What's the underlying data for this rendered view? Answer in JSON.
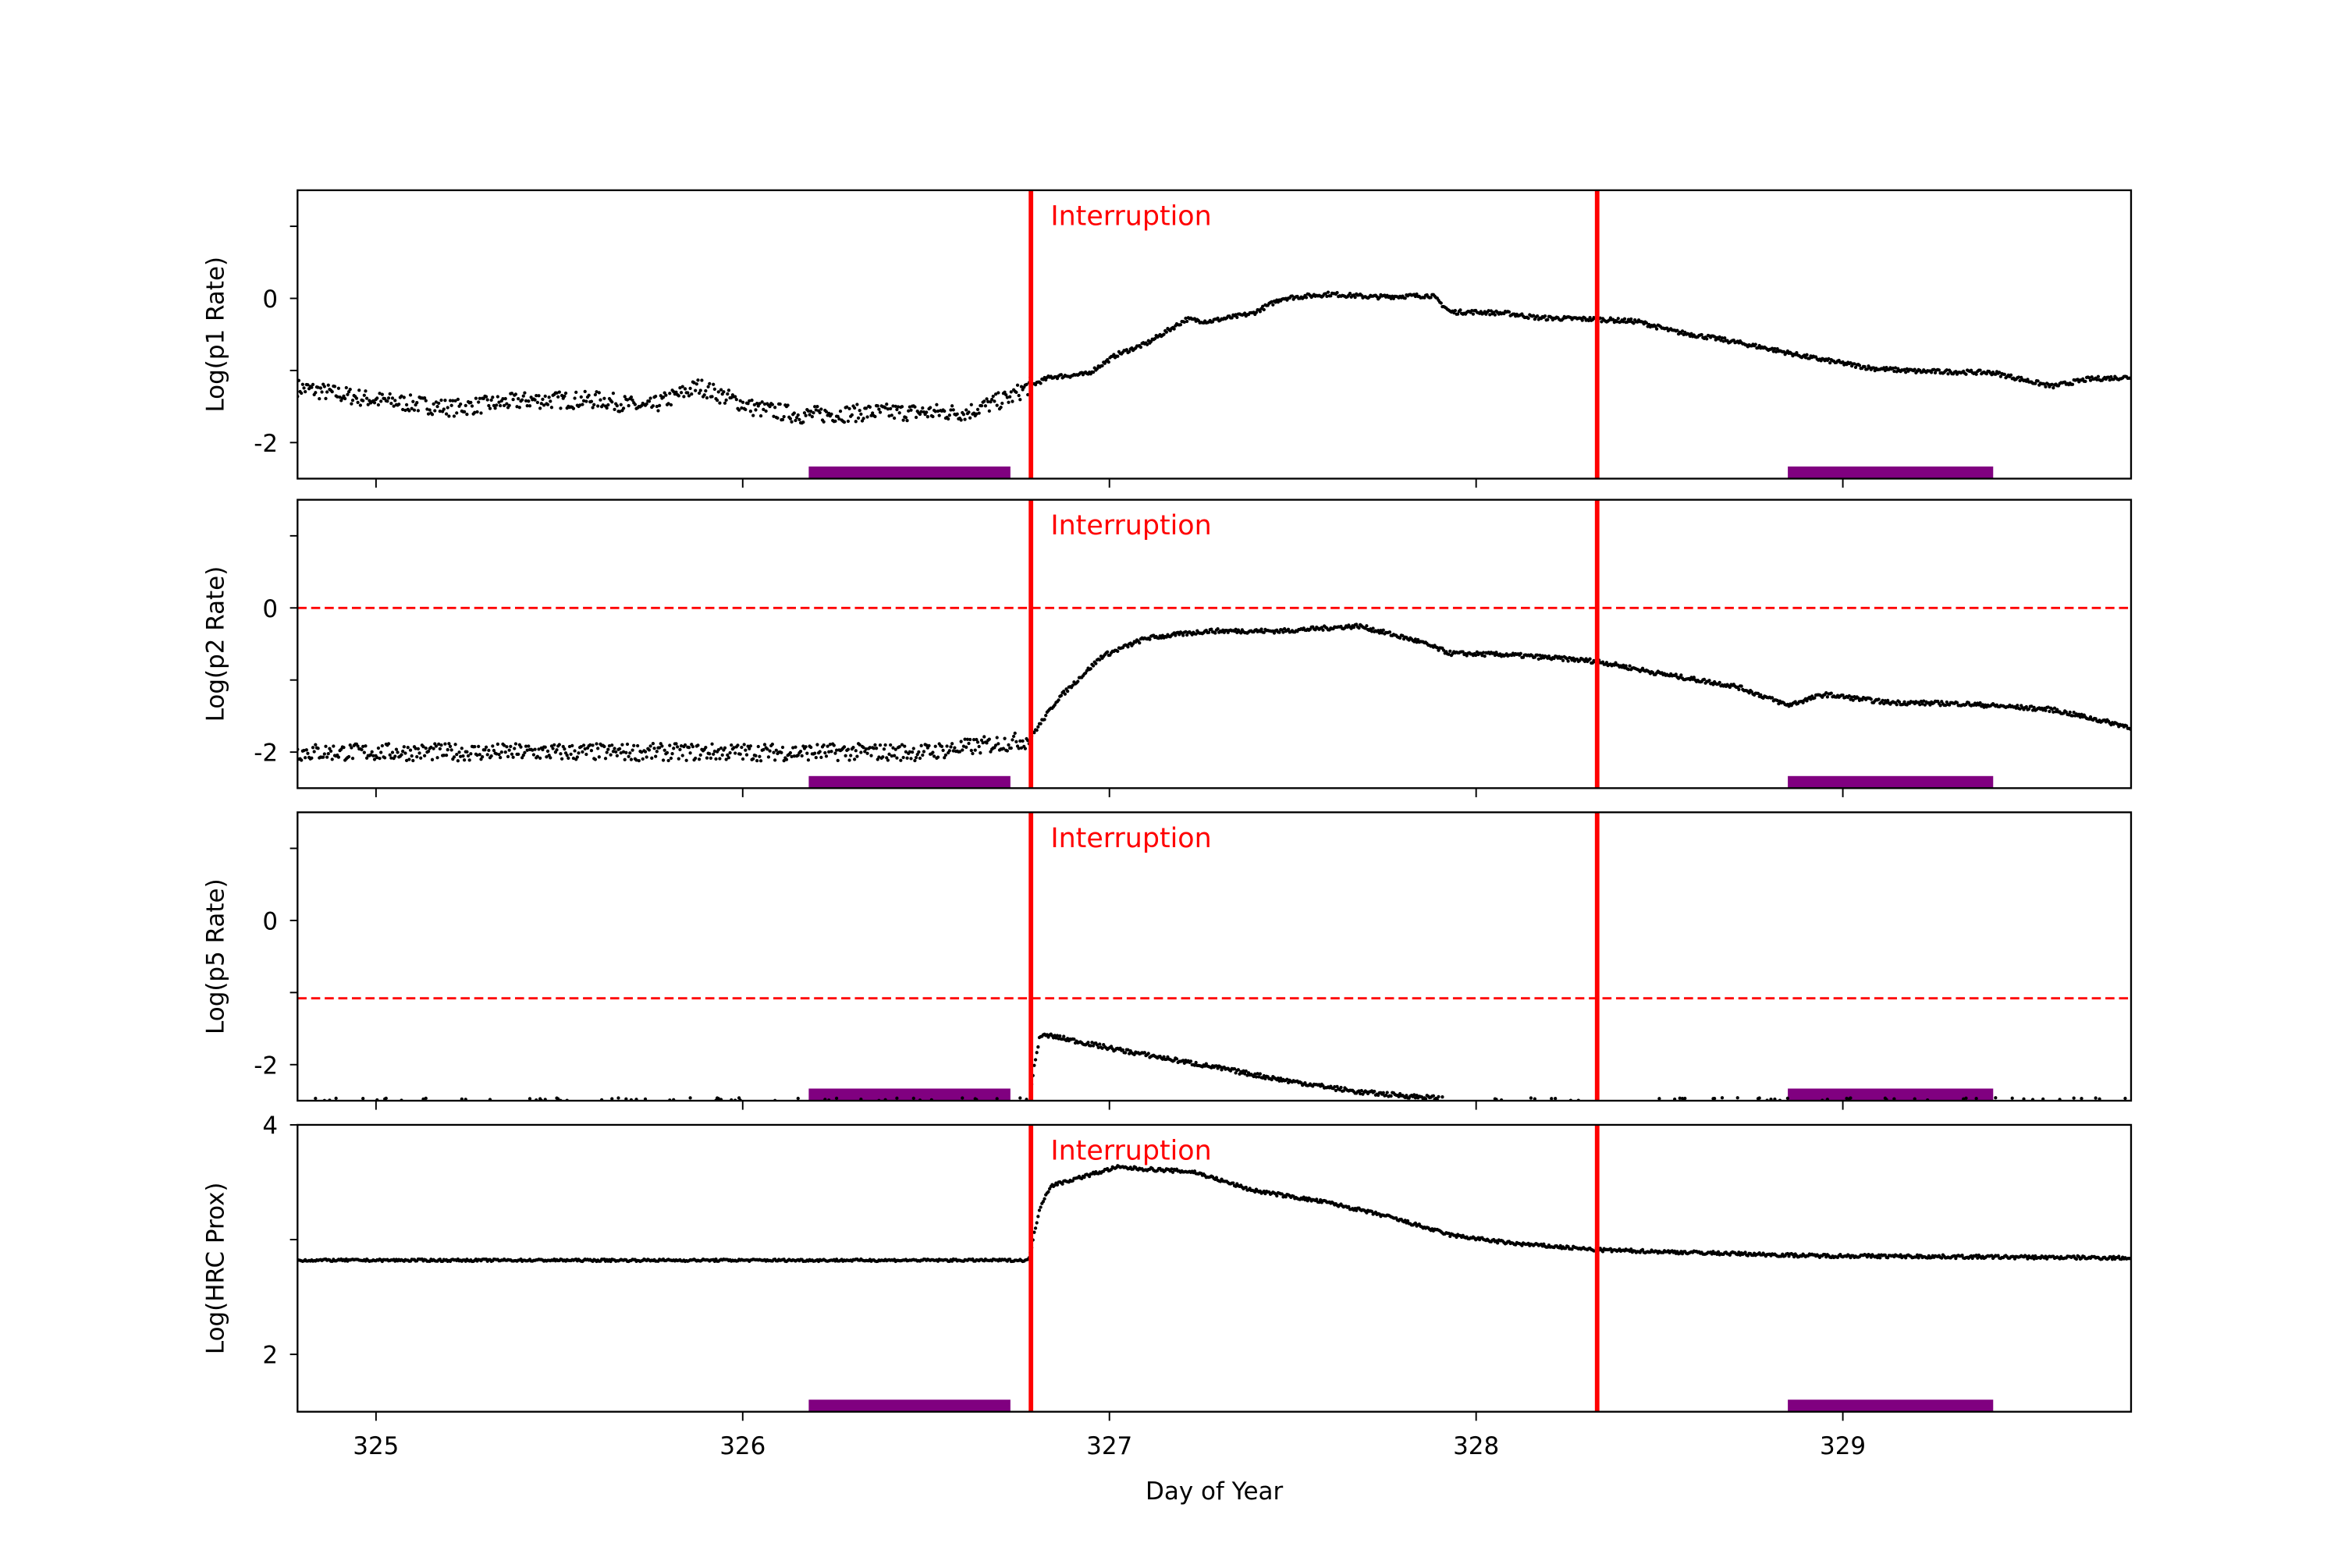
{
  "chart_data": [
    {
      "type": "scatter",
      "ylabel": "Log(p1 Rate)",
      "xlim": [
        324.786,
        329.786
      ],
      "ylim": [
        -2.5,
        1.5
      ],
      "yticks": [
        1,
        0,
        -1,
        -2
      ],
      "ytick_labels": [
        "",
        "0",
        "",
        "-2"
      ],
      "xtick_labels_shown": false,
      "threshold": null,
      "annotation": "Interruption",
      "series": [
        {
          "x": [
            324.79,
            325.0,
            325.21,
            325.42,
            325.62,
            325.74,
            325.88,
            326.03,
            326.16,
            326.36,
            326.61,
            326.73,
            326.78,
            326.84,
            326.94,
            327.02,
            327.1,
            327.21,
            327.27,
            327.39,
            327.47,
            327.6,
            327.72,
            327.88,
            327.93,
            328.01,
            328.09,
            328.17,
            328.33,
            328.44,
            328.54,
            328.67,
            328.79,
            328.91,
            329.08,
            329.2,
            329.41,
            329.57,
            329.67,
            329.79
          ],
          "y": [
            -1.24,
            -1.41,
            -1.52,
            -1.41,
            -1.41,
            -1.52,
            -1.22,
            -1.52,
            -1.62,
            -1.58,
            -1.58,
            -1.37,
            -1.22,
            -1.09,
            -1.05,
            -0.78,
            -0.63,
            -0.29,
            -0.32,
            -0.21,
            0.0,
            0.06,
            0.02,
            0.04,
            -0.19,
            -0.19,
            -0.21,
            -0.27,
            -0.29,
            -0.32,
            -0.46,
            -0.57,
            -0.69,
            -0.82,
            -0.97,
            -1.01,
            -1.03,
            -1.22,
            -1.12,
            -1.09
          ]
        }
      ]
    },
    {
      "type": "scatter",
      "ylabel": "Log(p2 Rate)",
      "xlim": [
        324.786,
        329.786
      ],
      "ylim": [
        -2.5,
        1.5
      ],
      "yticks": [
        1,
        0,
        -1,
        -2
      ],
      "ytick_labels": [
        "",
        "0",
        "",
        "-2"
      ],
      "xtick_labels_shown": false,
      "threshold": 0,
      "annotation": "Interruption",
      "series": [
        {
          "x": [
            324.79,
            325.5,
            326.0,
            326.5,
            326.78,
            326.86,
            326.98,
            327.1,
            327.27,
            327.47,
            327.68,
            327.84,
            327.93,
            328.09,
            328.33,
            328.5,
            328.71,
            328.85,
            328.95,
            329.12,
            329.33,
            329.57,
            329.79
          ],
          "y": [
            -2.0,
            -2.0,
            -2.0,
            -2.0,
            -1.83,
            -1.26,
            -0.67,
            -0.42,
            -0.32,
            -0.32,
            -0.25,
            -0.46,
            -0.63,
            -0.65,
            -0.74,
            -0.91,
            -1.09,
            -1.35,
            -1.2,
            -1.31,
            -1.33,
            -1.41,
            -1.66
          ]
        }
      ]
    },
    {
      "type": "scatter",
      "ylabel": "Log(p5 Rate)",
      "xlim": [
        324.786,
        329.786
      ],
      "ylim": [
        -2.5,
        1.5
      ],
      "yticks": [
        1,
        0,
        -1,
        -2
      ],
      "ytick_labels": [
        "",
        "0",
        "",
        "-2"
      ],
      "xtick_labels_shown": false,
      "threshold": -1.08,
      "annotation": "Interruption",
      "series": [
        {
          "x": [
            324.79,
            326.78,
            326.81,
            326.84,
            327.02,
            327.27,
            327.47,
            327.68,
            327.88,
            328.2,
            329.79
          ],
          "y": [
            -2.48,
            -2.48,
            -1.6,
            -1.6,
            -1.79,
            -2.02,
            -2.21,
            -2.38,
            -2.46,
            -2.48,
            -2.48
          ]
        }
      ]
    },
    {
      "type": "scatter",
      "ylabel": "Log(HRC Prox)",
      "xlabel": "Day of Year",
      "xlim": [
        324.786,
        329.786
      ],
      "ylim": [
        1.5,
        4
      ],
      "yticks": [
        4,
        3,
        2
      ],
      "ytick_labels": [
        "4",
        "",
        "2"
      ],
      "xticks": [
        325,
        326,
        327,
        328,
        329
      ],
      "xtick_labels": [
        "325",
        "326",
        "327",
        "328",
        "329"
      ],
      "xtick_labels_shown": true,
      "threshold": null,
      "annotation": "Interruption",
      "series": [
        {
          "x": [
            324.79,
            326.78,
            326.81,
            326.84,
            327.02,
            327.23,
            327.39,
            327.6,
            327.76,
            327.93,
            328.09,
            328.33,
            328.91,
            329.79
          ],
          "y": [
            2.82,
            2.82,
            3.28,
            3.47,
            3.63,
            3.59,
            3.43,
            3.32,
            3.2,
            3.04,
            2.97,
            2.91,
            2.86,
            2.84
          ]
        }
      ]
    }
  ],
  "interruption_lines": [
    326.786,
    328.33
  ],
  "shaded_periods": [
    [
      326.18,
      326.73
    ],
    [
      328.85,
      329.41
    ]
  ],
  "colors": {
    "data": "#000000",
    "interruption": "#ff0000",
    "threshold": "#ff0000",
    "period_bar": "#800080"
  }
}
